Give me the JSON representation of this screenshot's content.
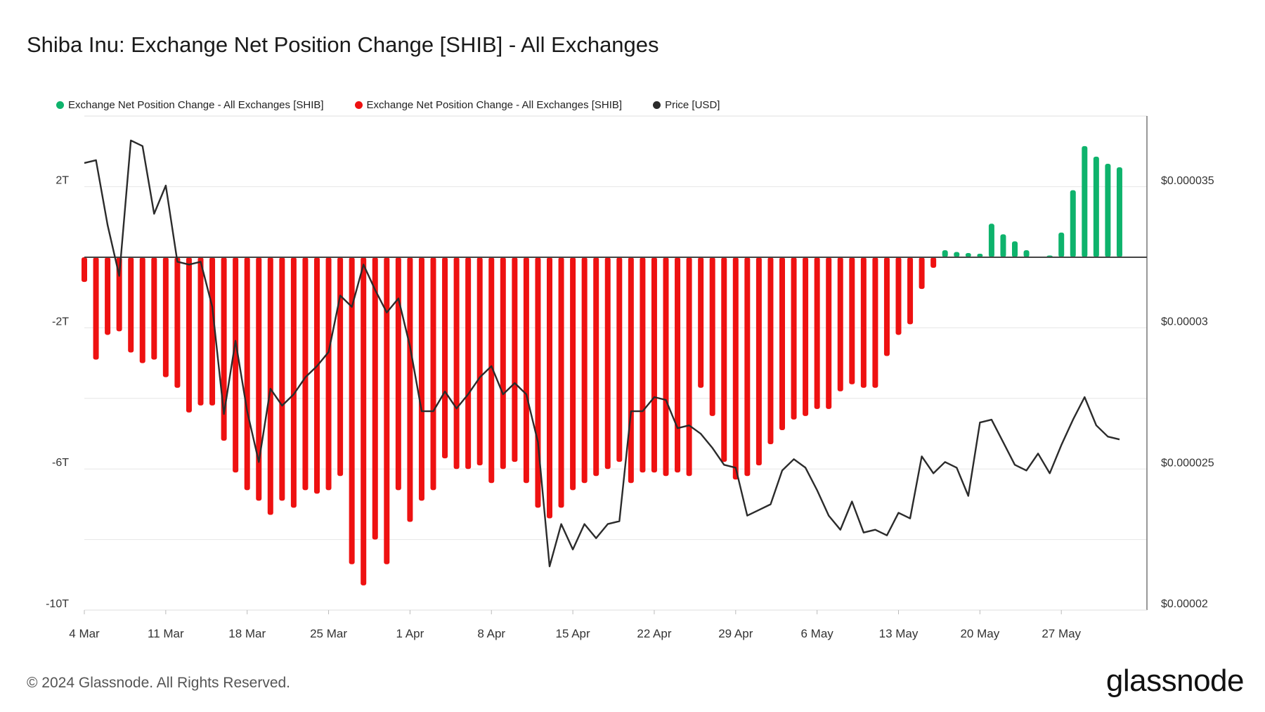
{
  "header": {
    "title": "Shiba Inu: Exchange Net Position Change [SHIB] - All Exchanges"
  },
  "legend": [
    {
      "label": "Exchange Net Position Change - All Exchanges [SHIB]",
      "color": "#0eb36c"
    },
    {
      "label": "Exchange Net Position Change - All Exchanges [SHIB]",
      "color": "#ee1111"
    },
    {
      "label": "Price [USD]",
      "color": "#2b2b2b"
    }
  ],
  "footer": {
    "copyright": "© 2024 Glassnode. All Rights Reserved.",
    "logo_text": "glassnode"
  },
  "chart_data": {
    "type": "bar",
    "x_start": "2024-03-04",
    "x_tick_labels": [
      "4 Mar",
      "11 Mar",
      "18 Mar",
      "25 Mar",
      "1 Apr",
      "8 Apr",
      "15 Apr",
      "22 Apr",
      "29 Apr",
      "6 May",
      "13 May",
      "20 May",
      "27 May"
    ],
    "y_left": {
      "ticks": [
        "2T",
        "-2T",
        "-6T",
        "-10T"
      ],
      "tick_values": [
        2,
        -2,
        -6,
        -10
      ],
      "range": [
        -10,
        3.9
      ],
      "unit": "T"
    },
    "y_right": {
      "ticks": [
        "$0.000035",
        "$0.00003",
        "$0.000025",
        "$0.00002"
      ],
      "tick_values": [
        3.5e-05,
        3e-05,
        2.5e-05,
        2e-05
      ],
      "range": [
        2e-05,
        3.9e-05
      ]
    },
    "grid": true,
    "series": [
      {
        "name": "Exchange Net Position Change - All Exchanges [SHIB]",
        "unit": "T",
        "positive_color": "#0eb36c",
        "negative_color": "#ee1111",
        "values": [
          -0.7,
          -2.9,
          -2.2,
          -2.1,
          -2.7,
          -3.0,
          -2.9,
          -3.4,
          -3.7,
          -4.4,
          -4.2,
          -4.2,
          -5.2,
          -6.1,
          -6.6,
          -6.9,
          -7.3,
          -6.9,
          -7.1,
          -6.6,
          -6.7,
          -6.6,
          -6.2,
          -8.7,
          -9.3,
          -8.0,
          -8.7,
          -6.6,
          -7.5,
          -6.9,
          -6.6,
          -5.7,
          -6.0,
          -6.0,
          -5.9,
          -6.4,
          -6.0,
          -5.8,
          -6.4,
          -7.1,
          -7.4,
          -7.1,
          -6.6,
          -6.4,
          -6.2,
          -6.0,
          -5.8,
          -6.4,
          -6.1,
          -6.1,
          -6.2,
          -6.1,
          -6.2,
          -3.7,
          -4.5,
          -5.8,
          -6.3,
          -6.2,
          -5.9,
          -5.3,
          -4.9,
          -4.6,
          -4.5,
          -4.3,
          -4.3,
          -3.8,
          -3.6,
          -3.7,
          -3.7,
          -2.8,
          -2.2,
          -1.9,
          -0.9,
          -0.3,
          0.2,
          0.15,
          0.12,
          0.1,
          0.95,
          0.65,
          0.45,
          0.2,
          0.0,
          0.05,
          0.7,
          1.9,
          3.15,
          2.85,
          2.65,
          2.55
        ]
      },
      {
        "name": "Price [USD]",
        "unit": "USD",
        "color": "#2b2b2b",
        "values": [
          3.56e-05,
          3.57e-05,
          3.34e-05,
          3.16e-05,
          3.64e-05,
          3.62e-05,
          3.38e-05,
          3.48e-05,
          3.21e-05,
          3.2e-05,
          3.21e-05,
          3.05e-05,
          2.67e-05,
          2.93e-05,
          2.68e-05,
          2.5e-05,
          2.76e-05,
          2.7e-05,
          2.74e-05,
          2.8e-05,
          2.84e-05,
          2.89e-05,
          3.09e-05,
          3.05e-05,
          3.2e-05,
          3.11e-05,
          3.03e-05,
          3.08e-05,
          2.91e-05,
          2.68e-05,
          2.68e-05,
          2.75e-05,
          2.69e-05,
          2.74e-05,
          2.8e-05,
          2.84e-05,
          2.74e-05,
          2.78e-05,
          2.74e-05,
          2.57e-05,
          2.13e-05,
          2.28e-05,
          2.19e-05,
          2.28e-05,
          2.23e-05,
          2.28e-05,
          2.29e-05,
          2.68e-05,
          2.68e-05,
          2.73e-05,
          2.72e-05,
          2.62e-05,
          2.63e-05,
          2.6e-05,
          2.55e-05,
          2.49e-05,
          2.48e-05,
          2.31e-05,
          2.33e-05,
          2.35e-05,
          2.47e-05,
          2.51e-05,
          2.48e-05,
          2.4e-05,
          2.31e-05,
          2.26e-05,
          2.36e-05,
          2.25e-05,
          2.26e-05,
          2.24e-05,
          2.32e-05,
          2.3e-05,
          2.52e-05,
          2.46e-05,
          2.5e-05,
          2.48e-05,
          2.38e-05,
          2.64e-05,
          2.65e-05,
          2.57e-05,
          2.49e-05,
          2.47e-05,
          2.53e-05,
          2.46e-05,
          2.56e-05,
          2.65e-05,
          2.73e-05,
          2.63e-05,
          2.59e-05,
          2.58e-05
        ]
      }
    ]
  }
}
